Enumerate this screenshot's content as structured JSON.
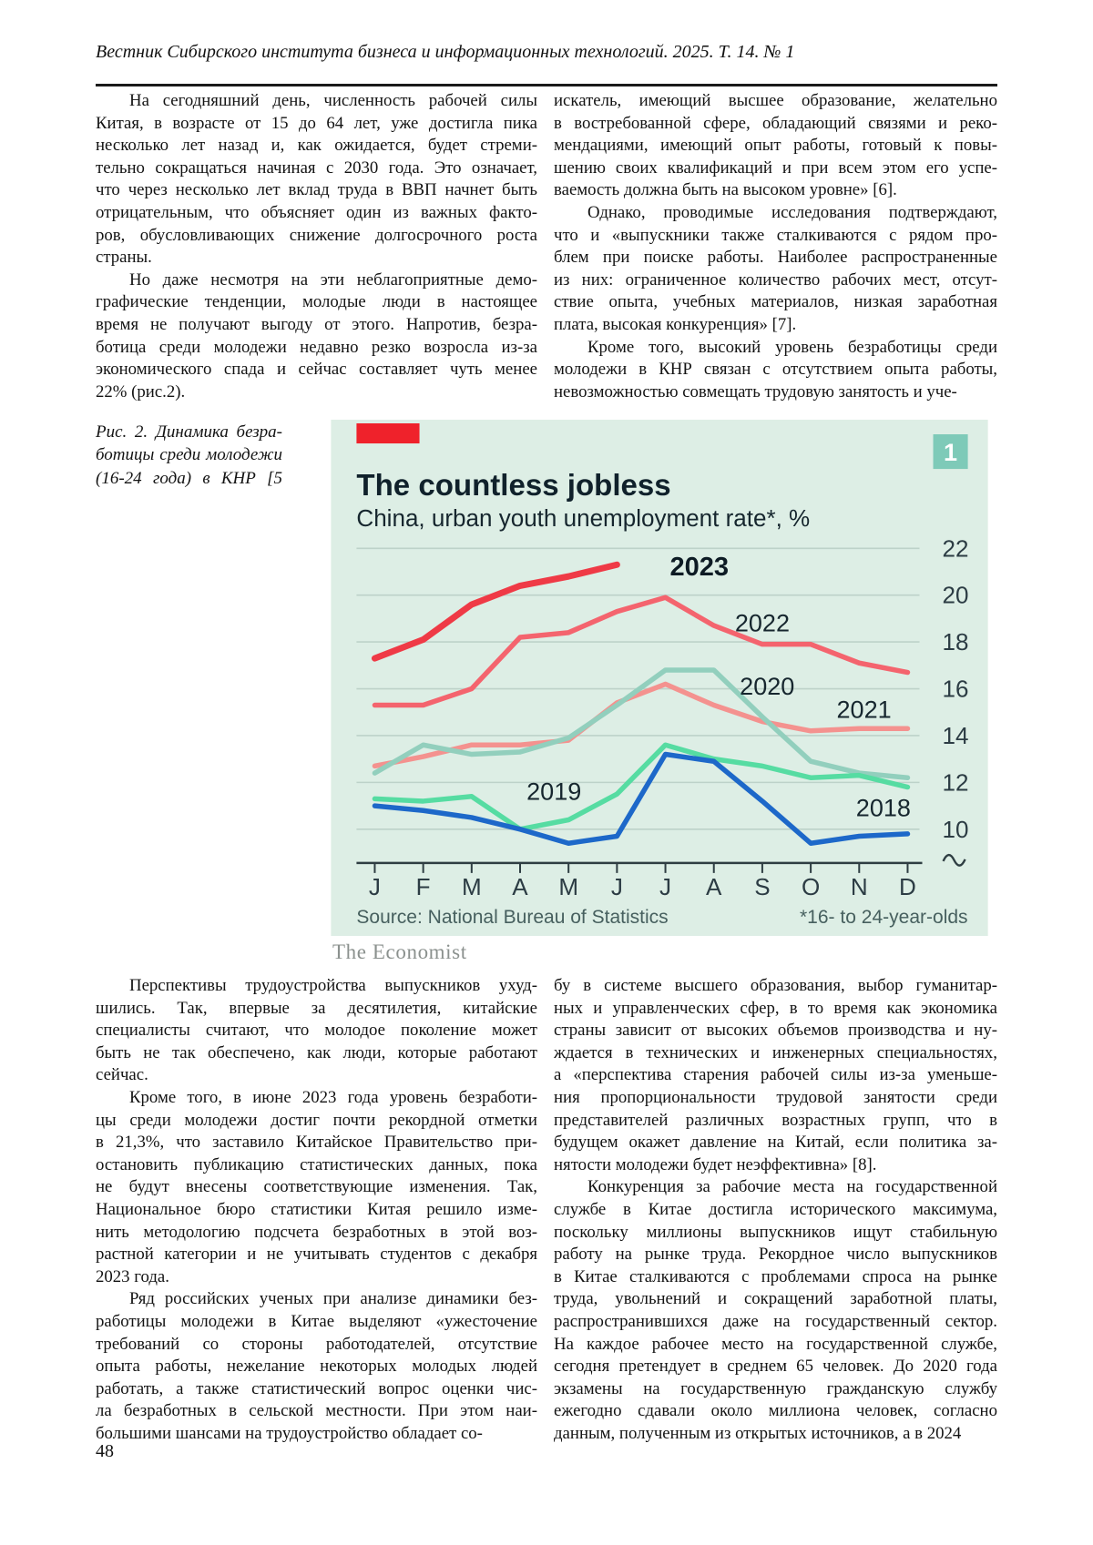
{
  "page": {
    "running_header": "Вестник Сибирского института бизнеса и информационных технологий. 2025. Т. 14. № 1",
    "page_number": "48"
  },
  "figure": {
    "caption_lines": [
      "Рис. 2. Динамика безра-",
      "ботицы среди молодежи",
      "(16-24 года) в КНР [5"
    ],
    "credit": "The Economist"
  },
  "columns": {
    "left_top": [
      {
        "indent": true,
        "lines": [
          "На сегодняшний день, численность рабочей силы",
          "Китая, в возрасте от 15 до 64 лет, уже достигла пика",
          "несколько лет назад и, как ожидается, будет стреми-",
          "тельно сокращаться начиная с 2030 года. Это означает,",
          "что через несколько лет вклад труда в ВВП начнет быть",
          "отрицательным, что объясняет один из важных факто-",
          "ров, обусловливающих снижение долгосрочного роста",
          "страны."
        ]
      },
      {
        "indent": true,
        "lines": [
          "Но даже несмотря на эти неблагоприятные демо-",
          "графические тенденции, молодые люди в настоящее",
          "время не получают выгоду от этого. Напротив, безра-",
          "ботица среди молодежи недавно резко возросла из-за",
          "экономического спада и сейчас составляет чуть менее",
          "22% (рис.2)."
        ]
      }
    ],
    "right_top": [
      {
        "indent": false,
        "lines": [
          "искатель, имеющий высшее образование, желательно",
          "в востребованной сфере, обладающий связями и реко-",
          "мендациями, имеющий опыт работы, готовый к повы-",
          "шению своих квалификаций и при всем этом его успе-",
          "ваемость должна быть на высоком уровне» [6]."
        ]
      },
      {
        "indent": true,
        "lines": [
          "Однако, проводимые исследования подтверждают,",
          "что и «выпускники также сталкиваются с рядом про-",
          "блем при поиске работы. Наиболее распространенные",
          "из них: ограниченное количество рабочих мест, отсут-",
          "ствие опыта, учебных материалов, низкая заработная",
          "плата, высокая конкуренция» [7]."
        ]
      },
      {
        "indent": true,
        "lines": [
          "Кроме того, высокий уровень безработицы среди",
          "молодежи в КНР связан с отсутствием опыта работы,",
          "невозможностью совмещать трудовую занятость и уче-"
        ]
      }
    ],
    "left_bottom": [
      {
        "indent": true,
        "lines": [
          "Перспективы трудоустройства выпускников ухуд-",
          "шились. Так, впервые за десятилетия, китайские",
          "специалисты считают, что молодое поколение может",
          "быть не так обеспечено, как люди, которые работают",
          "сейчас."
        ]
      },
      {
        "indent": true,
        "lines": [
          "Кроме того, в июне 2023 года уровень безработи-",
          "цы среди молодежи достиг почти рекордной отметки",
          "в 21,3%, что заставило Китайское Правительство при-",
          "остановить публикацию статистических данных, пока",
          "не будут внесены соответствующие изменения. Так,",
          "Национальное бюро статистики Китая решило изме-",
          "нить методологию подсчета безработных в этой воз-",
          "растной категории и не учитывать студентов с декабря",
          "2023 года."
        ]
      },
      {
        "indent": true,
        "lines": [
          "Ряд российских ученых при анализе динамики без-",
          "работицы молодежи в Китае выделяют «ужесточение",
          "требований со стороны работодателей, отсутствие",
          "опыта работы, нежелание некоторых молодых людей",
          "работать, а также статистический вопрос оценки чис-",
          "ла безработных в сельской местности. При этом наи-",
          "большими шансами на трудоустройство обладает со-"
        ]
      }
    ],
    "right_bottom": [
      {
        "indent": false,
        "lines": [
          "бу в системе высшего образования, выбор гуманитар-",
          "ных и управленческих сфер, в то время как экономика",
          "страны зависит от высоких объемов производства и ну-",
          "ждается в технических и инженерных специальностях,",
          "а «перспектива старения рабочей силы из-за уменьше-",
          "ния пропорциональности трудовой занятости среди",
          "представителей различных возрастных групп, что в",
          "будущем окажет давление на Китай, если политика за-",
          "нятости молодежи будет неэффективна» [8]."
        ]
      },
      {
        "indent": true,
        "lines": [
          "Конкуренция за рабочие места на государственной",
          "службе в Китае достигла исторического максимума,",
          "поскольку миллионы выпускников ищут стабильную",
          "работу на рынке труда. Рекордное число выпускников",
          "в Китае сталкиваются с проблемами спроса на рынке",
          "труда, увольнений и сокращений заработной платы,",
          "распространившихся даже на государственный сектор.",
          "На каждое рабочее место на государственной службе,",
          "сегодня претендует в среднем 65 человек. До 2020 года",
          "экзамены на государственную гражданскую службу",
          "ежегодно сдавали около миллиона человек, согласно",
          "данным, полученным из открытых источников, а в 2024"
        ]
      }
    ]
  },
  "chart_data": {
    "type": "line",
    "title": "The countless jobless",
    "subtitle": "China, urban youth unemployment rate*, %",
    "panel_badge": "1",
    "source": "Source: National Bureau of Statistics",
    "footnote": "*16- to 24-year-olds",
    "x_categories": [
      "J",
      "F",
      "M",
      "A",
      "M",
      "J",
      "J",
      "A",
      "S",
      "O",
      "N",
      "D"
    ],
    "y_gridlines": [
      22,
      20,
      18,
      16,
      14,
      12,
      10
    ],
    "y_axis_break": true,
    "ylim": [
      8.5,
      22.5
    ],
    "grid_on": true,
    "legend_position": "inline-labels",
    "series": [
      {
        "name": "2021",
        "color": "#f4928f",
        "label_month": 10.1,
        "label_value": 15.1,
        "values": [
          12.7,
          13.1,
          13.6,
          13.6,
          13.8,
          15.4,
          16.2,
          15.3,
          14.6,
          14.2,
          14.3,
          14.3
        ]
      },
      {
        "name": "2020",
        "color": "#92cfbd",
        "label_month": 8.1,
        "label_value": 16.1,
        "values": [
          12.4,
          13.6,
          13.2,
          13.3,
          13.9,
          15.3,
          16.8,
          16.8,
          14.8,
          12.9,
          12.4,
          12.2
        ]
      },
      {
        "name": "2019",
        "color": "#56dca2",
        "label_month": 3.7,
        "label_value": 11.6,
        "values": [
          11.3,
          11.2,
          11.4,
          10.0,
          10.4,
          11.5,
          13.6,
          13.0,
          12.7,
          12.2,
          12.3,
          11.8
        ]
      },
      {
        "name": "2018",
        "color": "#1d68c9",
        "label_month": 10.5,
        "label_value": 10.9,
        "values": [
          11.0,
          10.8,
          10.5,
          10.0,
          9.4,
          9.7,
          13.2,
          12.9,
          11.2,
          9.4,
          9.7,
          9.8
        ]
      },
      {
        "name": "2022",
        "color": "#f4646e",
        "label_month": 8.0,
        "label_value": 18.8,
        "values": [
          15.3,
          15.3,
          16.0,
          18.2,
          18.4,
          19.3,
          19.9,
          18.7,
          17.9,
          17.9,
          17.1,
          16.7
        ]
      },
      {
        "name": "2023",
        "color": "#ef3a46",
        "bold": true,
        "label_month": 6.7,
        "label_value": 21.2,
        "values": [
          17.3,
          18.1,
          19.6,
          20.4,
          20.8,
          21.3
        ]
      }
    ],
    "colors": {
      "background": "#ddeee5",
      "tag": "#ef222b",
      "badge_bg": "#7ecab8",
      "grid": "#bdd2c9",
      "axis": "#2e3d42",
      "text": "#16262e"
    }
  }
}
